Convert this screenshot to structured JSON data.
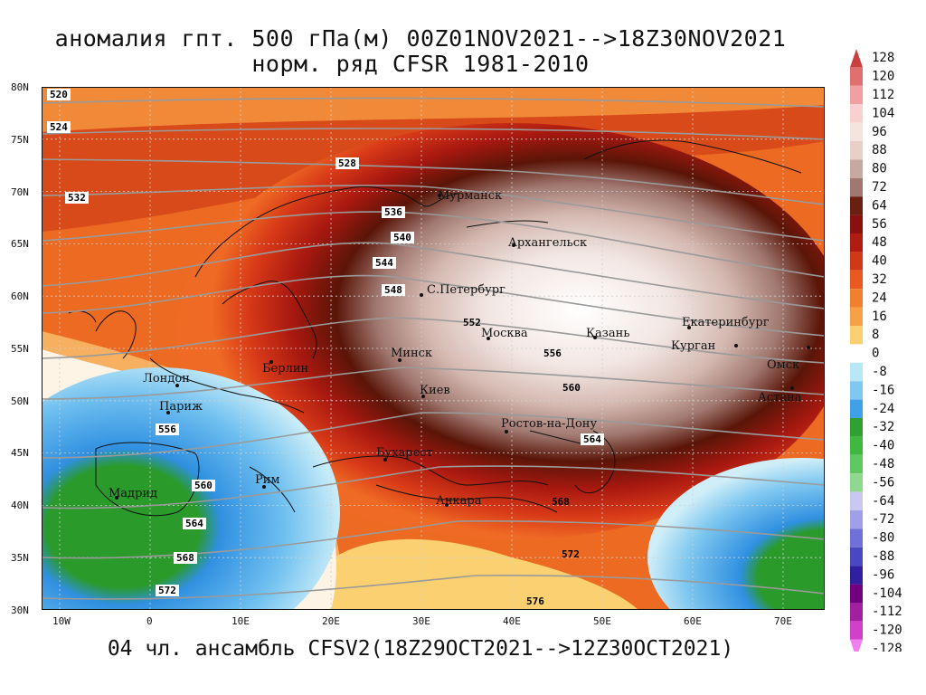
{
  "title_line1": "аномалия гпт. 500 гПа(м) 00Z01NOV2021-->18Z30NOV2021",
  "title_line2": "норм. ряд CFSR 1981-2010",
  "footer": "04 чл. ансамбль CFSV2(18Z29OCT2021-->12Z30OCT2021)",
  "lat_labels": [
    "80N",
    "75N",
    "70N",
    "65N",
    "60N",
    "55N",
    "50N",
    "45N",
    "40N",
    "35N",
    "30N"
  ],
  "lon_labels": [
    "10W",
    "0",
    "10E",
    "20E",
    "30E",
    "40E",
    "50E",
    "60E",
    "70E"
  ],
  "contour_labels": [
    "520",
    "524",
    "528",
    "532",
    "536",
    "540",
    "544",
    "548",
    "552",
    "556",
    "560",
    "564",
    "568",
    "572",
    "576"
  ],
  "cities": [
    "Мурманск",
    "Архангельск",
    "С.Петербург",
    "Москва",
    "Казань",
    "Екатеринбург",
    "Курган",
    "Омск",
    "Астана",
    "Минск",
    "Берлин",
    "Лондон",
    "Париж",
    "Киев",
    "Ростов-на-Дону",
    "Бухарест",
    "Рим",
    "Мадрид",
    "Анкара"
  ],
  "legend": {
    "values": [
      "128",
      "120",
      "112",
      "104",
      "96",
      "88",
      "80",
      "72",
      "64",
      "56",
      "48",
      "40",
      "32",
      "24",
      "16",
      "8",
      "0",
      "-8",
      "-16",
      "-24",
      "-32",
      "-40",
      "-48",
      "-56",
      "-64",
      "-72",
      "-80",
      "-88",
      "-96",
      "-104",
      "-112",
      "-120",
      "-128"
    ],
    "colors": [
      "#c84040",
      "#e07070",
      "#f0a0a0",
      "#f8d0d0",
      "#f4e4e0",
      "#e8d0c8",
      "#c8a8a0",
      "#a07870",
      "#6a2010",
      "#8a1010",
      "#b01c10",
      "#d03818",
      "#e85a20",
      "#f08030",
      "#f8a048",
      "#fbd070",
      "#ffffff",
      "#b8e8f8",
      "#80c8f0",
      "#40a0e8",
      "#30a030",
      "#40b840",
      "#60c860",
      "#90d890",
      "#c8c8f0",
      "#a0a0e8",
      "#7070d8",
      "#4848c0",
      "#3020a0",
      "#700080",
      "#a020a0",
      "#d040c8",
      "#f080f0"
    ]
  }
}
